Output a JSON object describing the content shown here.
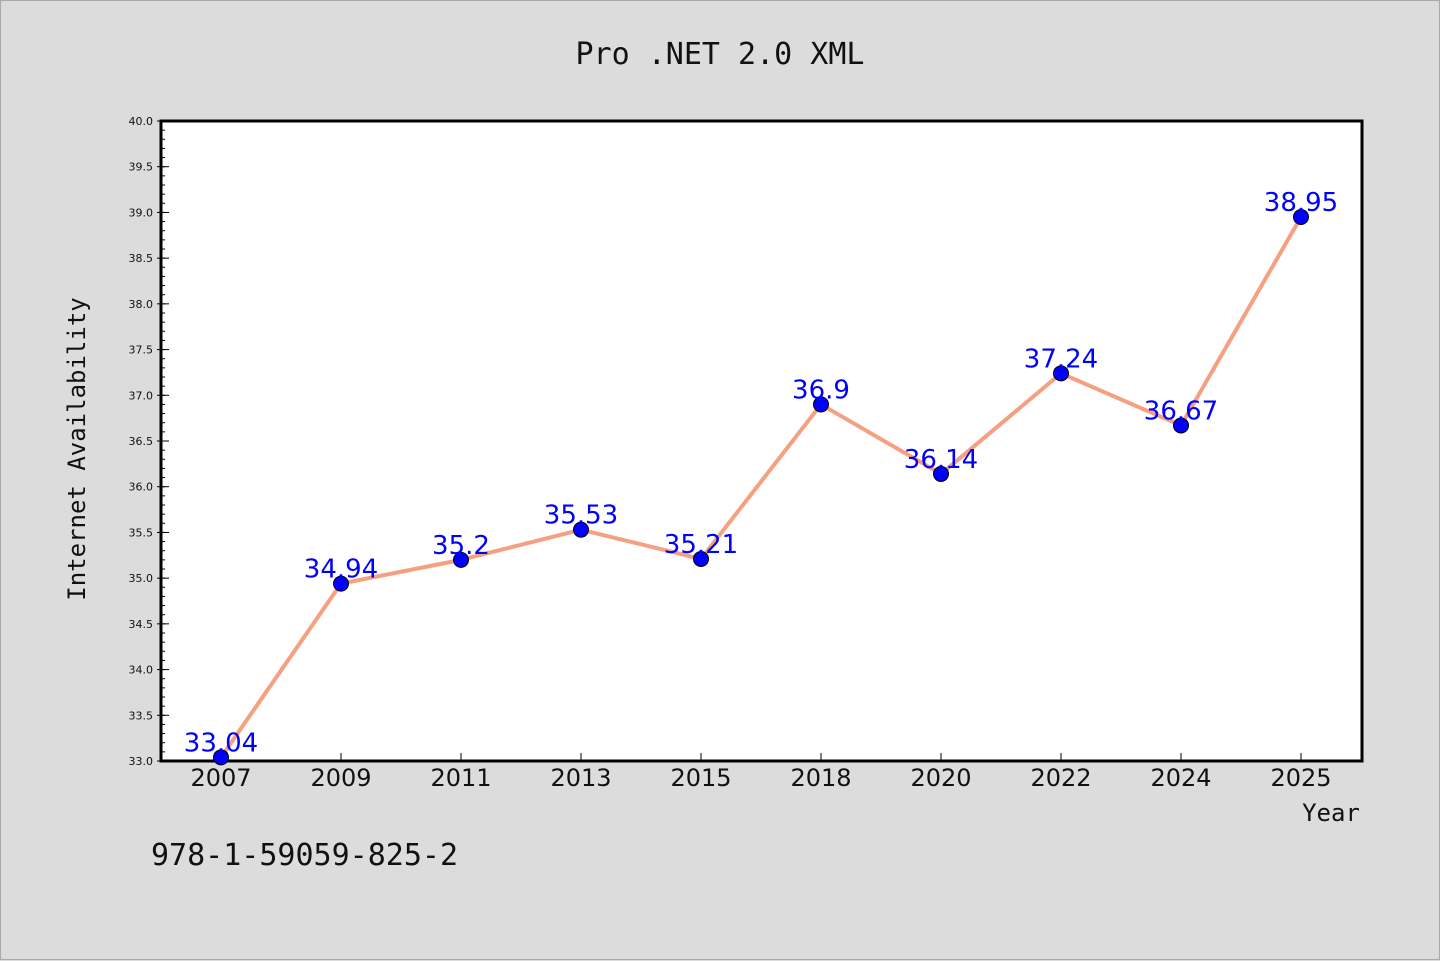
{
  "chart_data": {
    "type": "line",
    "title": "Pro .NET 2.0 XML",
    "xlabel": "Year",
    "ylabel": "Internet Availability",
    "categories": [
      "2007",
      "2009",
      "2011",
      "2013",
      "2015",
      "2018",
      "2020",
      "2022",
      "2024",
      "2025"
    ],
    "series": [
      {
        "values": [
          33.04,
          34.94,
          35.2,
          35.53,
          35.21,
          36.9,
          36.14,
          37.24,
          36.67,
          38.95
        ],
        "labels": [
          "33.04",
          "34.94",
          "35.2",
          "35.53",
          "35.21",
          "36.9",
          "36.14",
          "37.24",
          "36.67",
          "38.95"
        ],
        "line_color": "#f4a081",
        "marker_color": "#0000ff"
      }
    ],
    "ylim": [
      33.0,
      40.0
    ],
    "yticks": [
      "33.0",
      "33.5",
      "34.0",
      "34.5",
      "35.0",
      "35.5",
      "36.0",
      "36.5",
      "37.0",
      "37.5",
      "38.0",
      "38.5",
      "39.0",
      "39.5",
      "40.0"
    ],
    "grid": false,
    "legend": "none"
  },
  "footer_text": "978-1-59059-825-2",
  "colors": {
    "background": "#dcdcdc",
    "plot_background": "#ffffff",
    "line": "#f4a081",
    "marker": "#0000ff",
    "data_label": "#0000ff"
  }
}
